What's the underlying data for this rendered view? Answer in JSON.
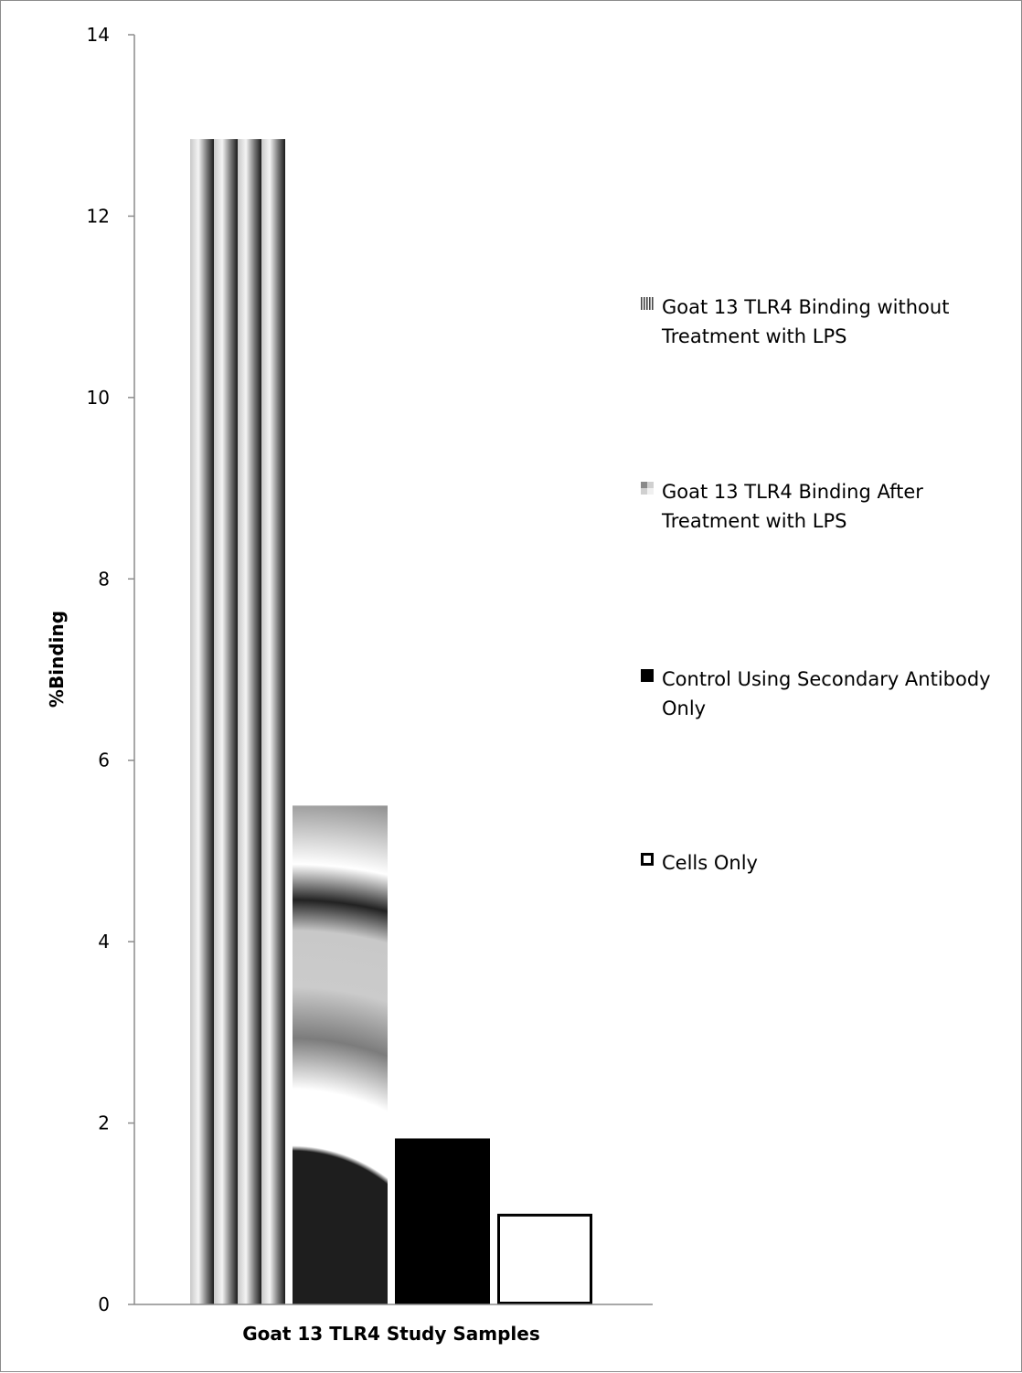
{
  "chart_data": {
    "type": "bar",
    "title": "",
    "xlabel": "Goat 13 TLR4 Study Samples",
    "ylabel": "%Binding",
    "ylim": [
      0,
      14
    ],
    "yticks": [
      "0",
      "2",
      "4",
      "6",
      "8",
      "10",
      "12",
      "14"
    ],
    "grid": false,
    "legend_position": "right",
    "series": [
      {
        "name": "Goat 13 TLR4 Binding without Treatment with LPS",
        "legend_lines": [
          "Goat 13 TLR4 Binding without",
          "Treatment with LPS"
        ],
        "value": 12.85,
        "pattern": "vertical-stripes"
      },
      {
        "name": "Goat 13 TLR4 Binding After Treatment with LPS",
        "legend_lines": [
          "Goat 13 TLR4 Binding After",
          "Treatment with LPS"
        ],
        "value": 5.5,
        "pattern": "shaded-rings"
      },
      {
        "name": "Control Using Secondary Antibody Only",
        "legend_lines": [
          "Control Using Secondary Antibody",
          "Only"
        ],
        "value": 1.83,
        "pattern": "solid",
        "color": "#000000"
      },
      {
        "name": "Cells Only",
        "legend_lines": [
          "Cells Only"
        ],
        "value": 1.0,
        "pattern": "outline",
        "color": "#ffffff"
      }
    ]
  }
}
